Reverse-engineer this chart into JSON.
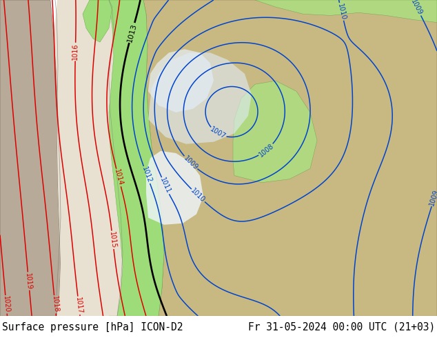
{
  "title_left": "Surface pressure [hPa] ICON-D2",
  "title_right": "Fr 31-05-2024 00:00 UTC (21+03)",
  "title_fontsize": 10.5,
  "fig_width": 6.34,
  "fig_height": 4.9,
  "dpi": 100,
  "sea_color": "#ddeeff",
  "land_gray": "#b8aa98",
  "land_tan": "#c8b882",
  "land_green": "#9ddc78",
  "land_green2": "#b0d880",
  "land_white_sea": "#f0f5ff",
  "red_color": "#dd0000",
  "blue_color": "#0044cc",
  "black_color": "#000000",
  "coast_color": "#808080",
  "bottom_bg": "#d0d0d0",
  "text_color": "#000000",
  "background_white": "#ffffff"
}
